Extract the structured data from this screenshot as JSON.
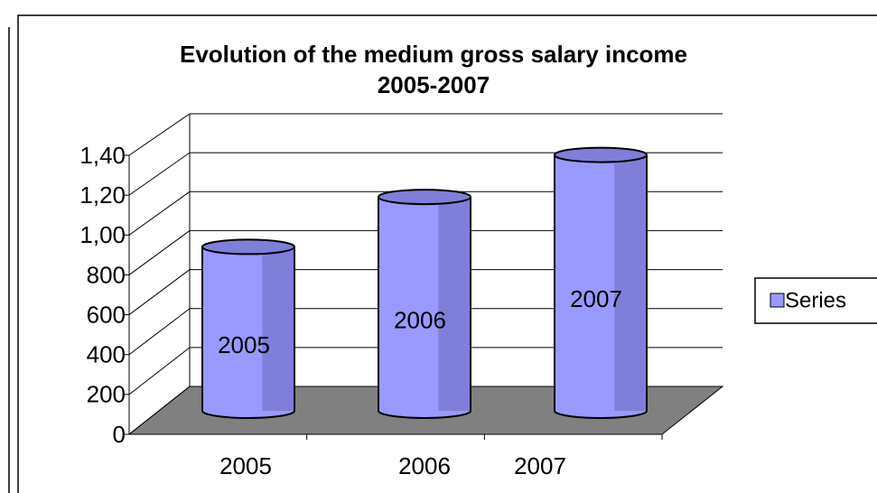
{
  "chart_data": {
    "type": "cylinder",
    "title": [
      "Evolution of the medium gross salary income",
      "2005-2007"
    ],
    "categories": [
      "2005",
      "2006",
      "2007"
    ],
    "series": [
      {
        "name": "Series",
        "color": "#9999ff",
        "values": [
          820,
          1070,
          1280
        ]
      }
    ],
    "ylim": [
      0,
      1400
    ],
    "yticks": [
      0,
      200,
      400,
      600,
      800,
      {
        "value": 1000,
        "label": "1,00"
      },
      {
        "value": 1200,
        "label": "1,20"
      },
      {
        "value": 1400,
        "label": "1,40"
      }
    ],
    "grid": true,
    "legend": "right"
  }
}
